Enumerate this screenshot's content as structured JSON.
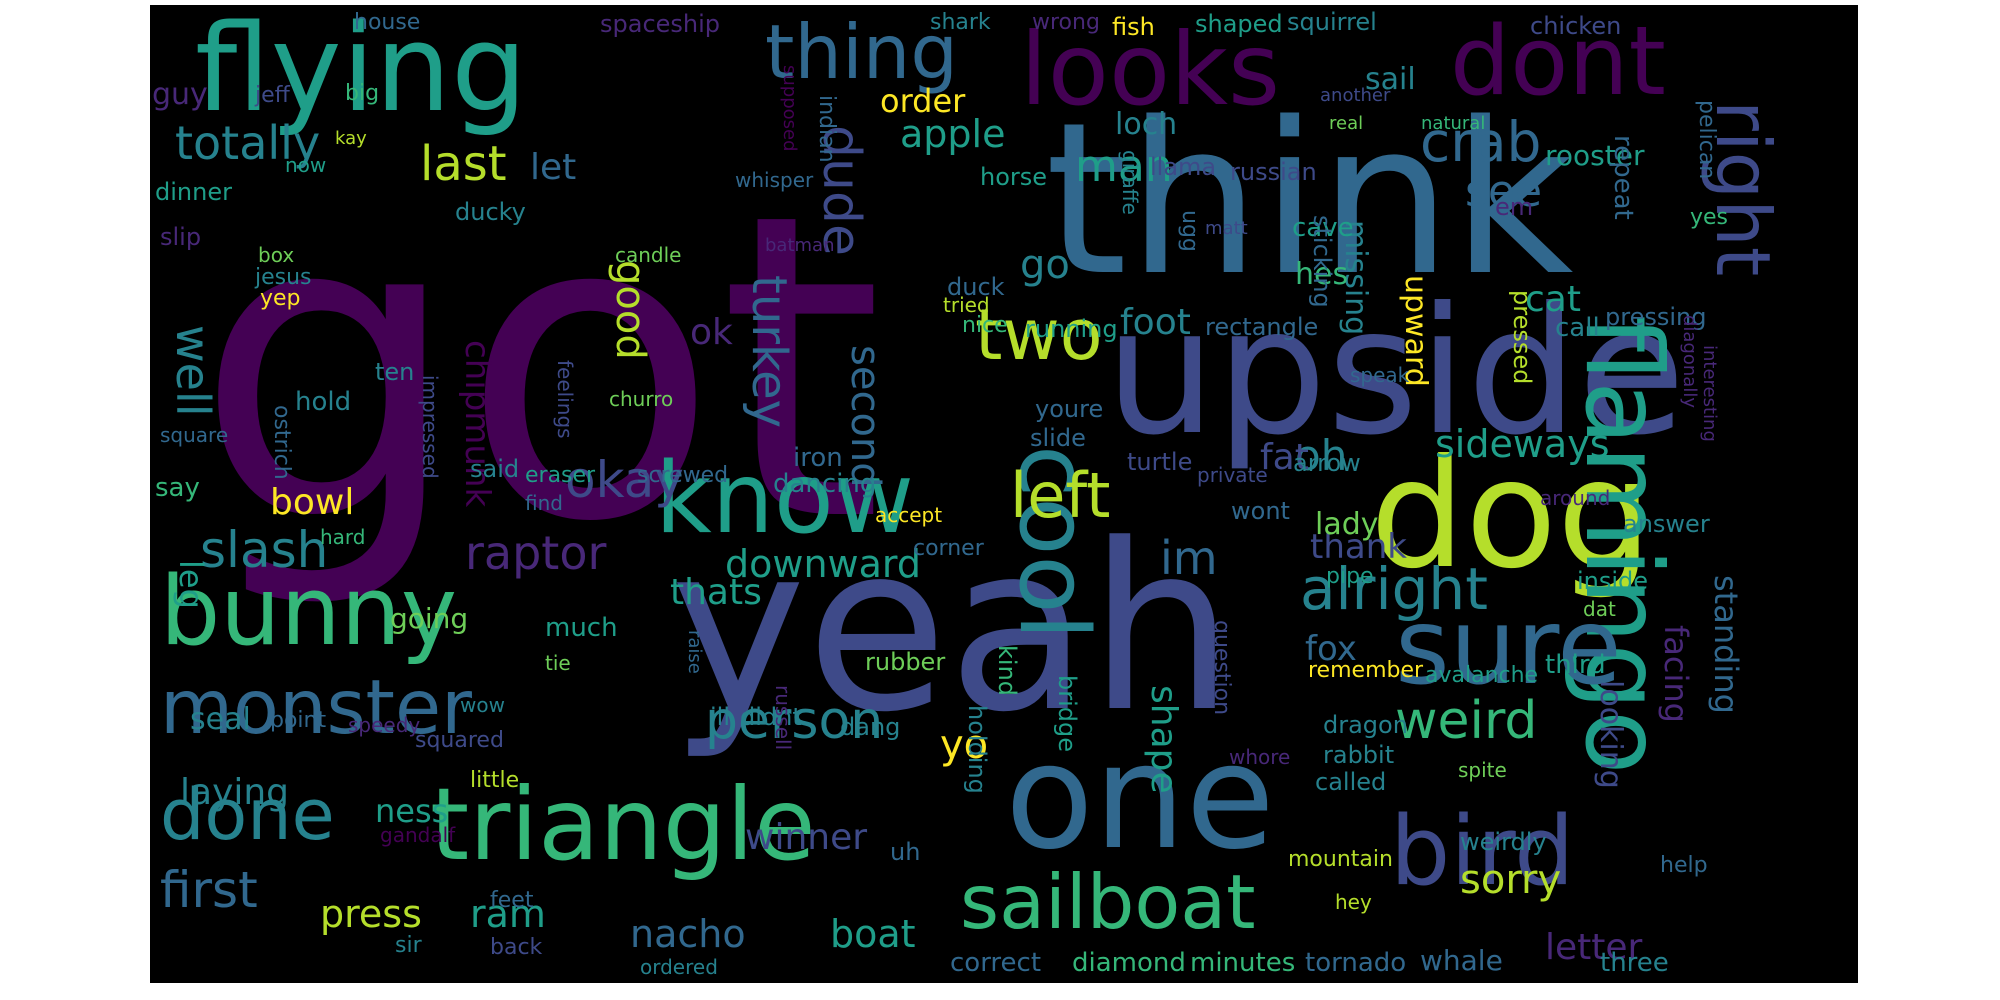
{
  "colors": {
    "background": "#000000",
    "palette": [
      "#440154",
      "#482878",
      "#3e4a89",
      "#31688e",
      "#26828e",
      "#1f9e89",
      "#35b779",
      "#6ece58",
      "#b5de2b",
      "#fde725"
    ]
  },
  "words": [
    "got",
    "think",
    "yeah",
    "upside",
    "one",
    "dog",
    "flying",
    "looks",
    "dont",
    "know",
    "triangle",
    "flamingo",
    "cool",
    "sure",
    "bunny",
    "bird",
    "sailboat",
    "thing",
    "right",
    "monster",
    "done",
    "two",
    "left",
    "alright",
    "weird",
    "person",
    "crab",
    "slash",
    "first",
    "okay",
    "totally",
    "turkey",
    "last",
    "dude",
    "raptor",
    "im",
    "apple",
    "oh",
    "let",
    "see",
    "man",
    "well",
    "second",
    "go",
    "downward",
    "sideways",
    "sorry",
    "yo",
    "press",
    "ram",
    "boat",
    "nacho",
    "winner",
    "fat",
    "thank",
    "fox",
    "cat",
    "missing",
    "upward",
    "laying",
    "ness",
    "shape",
    "looking",
    "facing",
    "standing",
    "letter",
    "good",
    "chipmunk",
    "bowl",
    "leg",
    "order",
    "loch",
    "sail",
    "spaceship",
    "house",
    "shark",
    "wrong",
    "fish",
    "shaped",
    "squirrel",
    "chicken",
    "guy",
    "jeff",
    "big",
    "rooster",
    "horse",
    "llama",
    "russian",
    "dinner",
    "ducky",
    "slip",
    "box",
    "candle",
    "jesus",
    "yep",
    "foot",
    "cave",
    "hes",
    "rectangle",
    "running",
    "duck",
    "nice",
    "call",
    "pressing",
    "repeat",
    "em",
    "yes",
    "ok",
    "hold",
    "ten",
    "said",
    "say",
    "iron",
    "dancing",
    "eraser",
    "screwed",
    "churro",
    "youre",
    "slide",
    "turtle",
    "arrow",
    "lady",
    "wont",
    "pipe",
    "answer",
    "inside",
    "third",
    "going",
    "thats",
    "much",
    "tie",
    "rubber",
    "holding",
    "kind",
    "bridge",
    "question",
    "remember",
    "avalanche",
    "dragon",
    "rabbit",
    "called",
    "point",
    "speedy",
    "squared",
    "wow",
    "seal",
    "little",
    "ill",
    "didnt",
    "dang",
    "uh",
    "mountain",
    "weirdly",
    "help",
    "hey",
    "feet",
    "sir",
    "back",
    "ordered",
    "correct",
    "diamond",
    "minutes",
    "tornado",
    "whale",
    "three",
    "hard",
    "find",
    "accept",
    "corner",
    "private",
    "speak",
    "ostrich",
    "square",
    "impressed",
    "feelings",
    "whisper",
    "supposed",
    "indian",
    "batman",
    "tried",
    "giraffe",
    "ugg",
    "matt",
    "another",
    "natural",
    "real",
    "kay",
    "now",
    "pelican",
    "diagonally",
    "interesting",
    "around",
    "spite",
    "dat",
    "whore",
    "raise",
    "russell",
    "gandalf",
    "sticking",
    "pressed"
  ]
}
